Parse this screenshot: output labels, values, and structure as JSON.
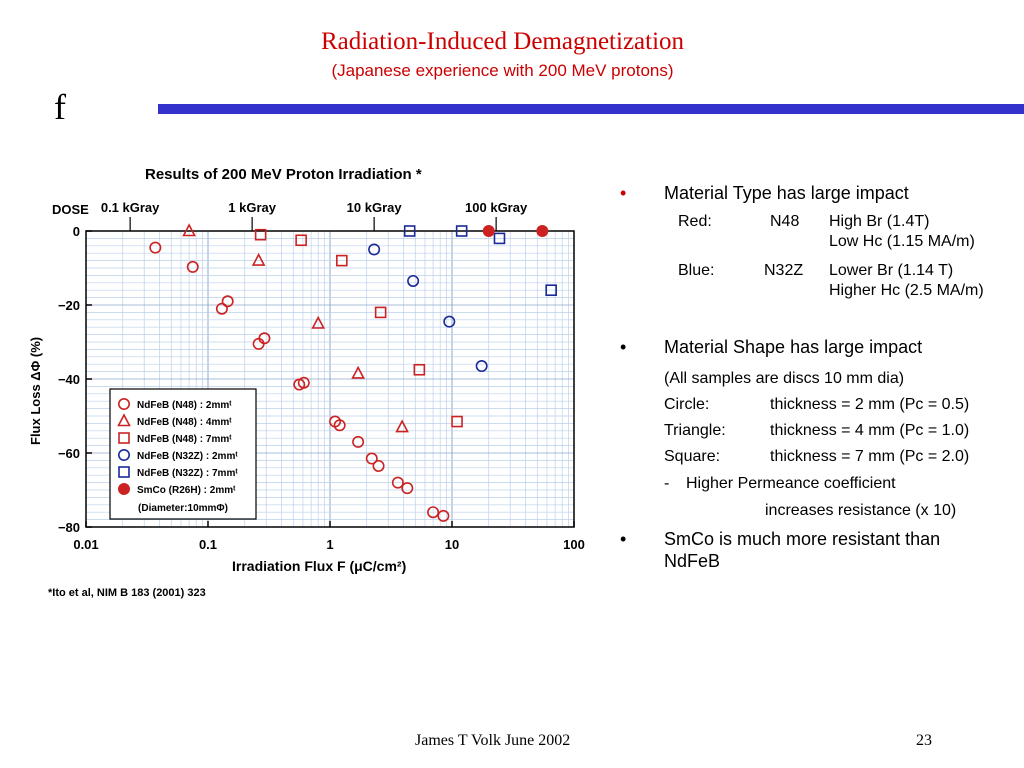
{
  "slide": {
    "title": "Radiation-Induced Demagnetization",
    "subtitle": "(Japanese experience with 200 MeV protons)",
    "glyph": "f"
  },
  "chart_data": {
    "type": "scatter",
    "title": "Results of 200 MeV Proton Irradiation *",
    "xlabel": "Irradiation Flux F (μC/cm²)",
    "ylabel": "Flux Loss ΔΦ (%)",
    "x_scale": "log",
    "xlim": [
      0.01,
      100
    ],
    "ylim": [
      -80,
      0
    ],
    "grid": true,
    "legend_position": "lower-left",
    "x_ticks": [
      "0.01",
      "0.1",
      "1",
      "10",
      "100"
    ],
    "y_ticks": [
      "0",
      "−20",
      "−40",
      "−60",
      "−80"
    ],
    "dose_label": "DOSE",
    "dose_ticks": [
      {
        "label": "0.1 kGray",
        "x": 0.023
      },
      {
        "label": "1 kGray",
        "x": 0.23
      },
      {
        "label": "10 kGray",
        "x": 2.3
      },
      {
        "label": "100 kGray",
        "x": 23
      }
    ],
    "legend_note": "(Diameter:10mmΦ)",
    "footnote": "*Ito et al, NIM B 183 (2001) 323",
    "series": [
      {
        "name": "NdFeB (N48)   : 2mmᵗ",
        "marker": "circle",
        "color": "#cc2222",
        "filled": false,
        "points": [
          [
            0.037,
            -4.5
          ],
          [
            0.075,
            -9.7
          ],
          [
            0.13,
            -21
          ],
          [
            0.145,
            -19
          ],
          [
            0.26,
            -30.5
          ],
          [
            0.29,
            -29
          ],
          [
            0.56,
            -41.5
          ],
          [
            0.61,
            -41
          ],
          [
            1.1,
            -51.5
          ],
          [
            1.2,
            -52.5
          ],
          [
            1.7,
            -57
          ],
          [
            2.2,
            -61.5
          ],
          [
            2.5,
            -63.5
          ],
          [
            3.6,
            -68
          ],
          [
            4.3,
            -69.5
          ],
          [
            7,
            -76
          ],
          [
            8.5,
            -77
          ]
        ]
      },
      {
        "name": "NdFeB (N48)   : 4mmᵗ",
        "marker": "triangle",
        "color": "#cc2222",
        "filled": false,
        "points": [
          [
            0.07,
            0
          ],
          [
            0.26,
            -8
          ],
          [
            0.8,
            -25
          ],
          [
            1.7,
            -38.5
          ],
          [
            3.9,
            -53
          ]
        ]
      },
      {
        "name": "NdFeB (N48)   : 7mmᵗ",
        "marker": "square",
        "color": "#cc2222",
        "filled": false,
        "points": [
          [
            0.27,
            -1
          ],
          [
            0.58,
            -2.5
          ],
          [
            1.25,
            -8
          ],
          [
            2.6,
            -22
          ],
          [
            5.4,
            -37.5
          ],
          [
            11,
            -51.5
          ]
        ]
      },
      {
        "name": "NdFeB (N32Z) : 2mmᵗ",
        "marker": "circle",
        "color": "#1a2a99",
        "filled": false,
        "points": [
          [
            2.3,
            -5
          ],
          [
            4.8,
            -13.5
          ],
          [
            9.5,
            -24.5
          ],
          [
            17.5,
            -36.5
          ]
        ]
      },
      {
        "name": "NdFeB (N32Z) : 7mmᵗ",
        "marker": "square",
        "color": "#1a2a99",
        "filled": false,
        "points": [
          [
            4.5,
            0
          ],
          [
            12,
            0
          ],
          [
            24.5,
            -2
          ],
          [
            65,
            -16
          ]
        ]
      },
      {
        "name": "SmCo (R26H)   : 2mmᵗ",
        "marker": "circle",
        "color": "#cc2222",
        "filled": true,
        "points": [
          [
            20,
            0
          ],
          [
            55,
            0
          ]
        ]
      }
    ]
  },
  "bullets": {
    "b1": "Material Type has large impact",
    "red": {
      "label": "Red:",
      "grade": "N48",
      "l1": "High Br (1.4T)",
      "l2": "Low Hc (1.15 MA/m)"
    },
    "blue": {
      "label": "Blue:",
      "grade": "N32Z",
      "l1": "Lower Br (1.14 T)",
      "l2": "Higher Hc (2.5 MA/m)"
    },
    "b2": "Material Shape has large impact",
    "note": "(All samples are discs 10 mm dia)",
    "circle": {
      "label": "Circle:",
      "text": "thickness = 2 mm (Pc = 0.5)"
    },
    "triangle": {
      "label": "Triangle:",
      "text": "thickness = 4 mm (Pc = 1.0)"
    },
    "square": {
      "label": "Square:",
      "text": "thickness = 7 mm (Pc = 2.0)"
    },
    "dash": "-",
    "perm1": "Higher Permeance coefficient",
    "perm2": "increases resistance (x 10)",
    "b3a": "SmCo is much more resistant than",
    "b3b": "NdFeB",
    "bullet_red": "•",
    "bullet_black": "•"
  },
  "footer": {
    "author": "James T Volk June 2002",
    "page": "23"
  },
  "colors": {
    "accent_red": "#cc0000",
    "rule_blue": "#3333cc"
  }
}
